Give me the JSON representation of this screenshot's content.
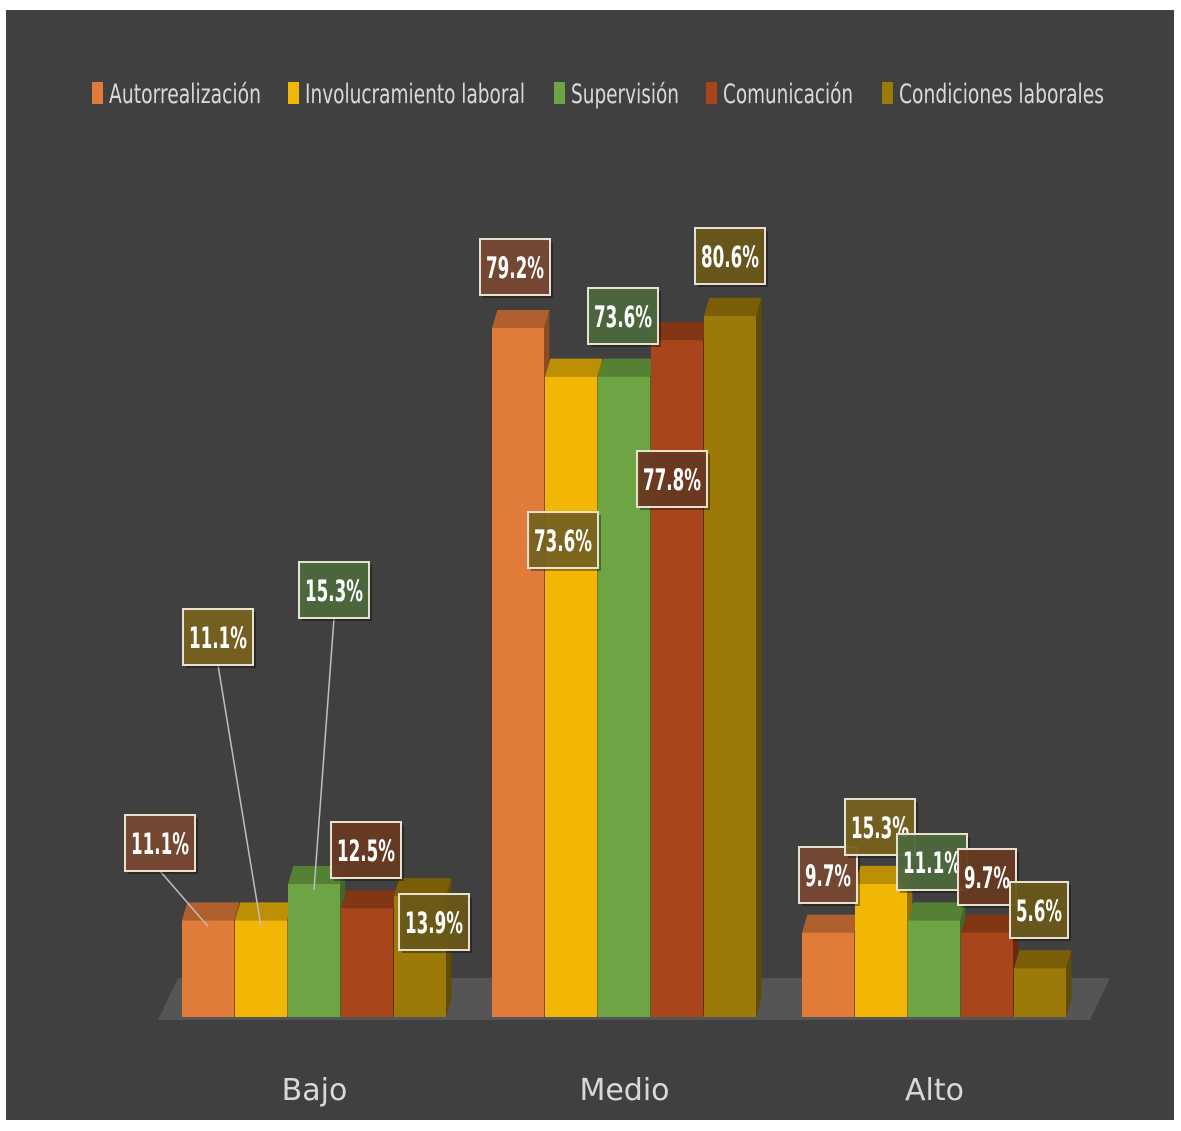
{
  "chart_data": {
    "type": "bar",
    "title": "",
    "xlabel": "",
    "ylabel": "",
    "ylim": [
      0,
      100
    ],
    "grid": false,
    "legend": "top",
    "categories": [
      "Bajo",
      "Medio",
      "Alto"
    ],
    "series": [
      {
        "name": "Autorrealización",
        "values": [
          11.1,
          79.2,
          9.7
        ],
        "color": "#e07b39"
      },
      {
        "name": "Involucramiento laboral",
        "values": [
          11.1,
          73.6,
          15.3
        ],
        "color": "#f2b705"
      },
      {
        "name": "Supervisión",
        "values": [
          15.3,
          73.6,
          11.1
        ],
        "color": "#6da544"
      },
      {
        "name": "Comunicación",
        "values": [
          12.5,
          77.8,
          9.7
        ],
        "color": "#a8451a"
      },
      {
        "name": "Condiciones laborales",
        "values": [
          13.9,
          80.6,
          5.6
        ],
        "color": "#9c7a0a"
      }
    ],
    "data_labels": [
      [
        "11.1%",
        "79.2%",
        "9.7%"
      ],
      [
        "11.1%",
        "73.6%",
        "15.3%"
      ],
      [
        "15.3%",
        "73.6%",
        "11.1%"
      ],
      [
        "12.5%",
        "77.8%",
        "9.7%"
      ],
      [
        "13.9%",
        "80.6%",
        "5.6%"
      ]
    ]
  }
}
